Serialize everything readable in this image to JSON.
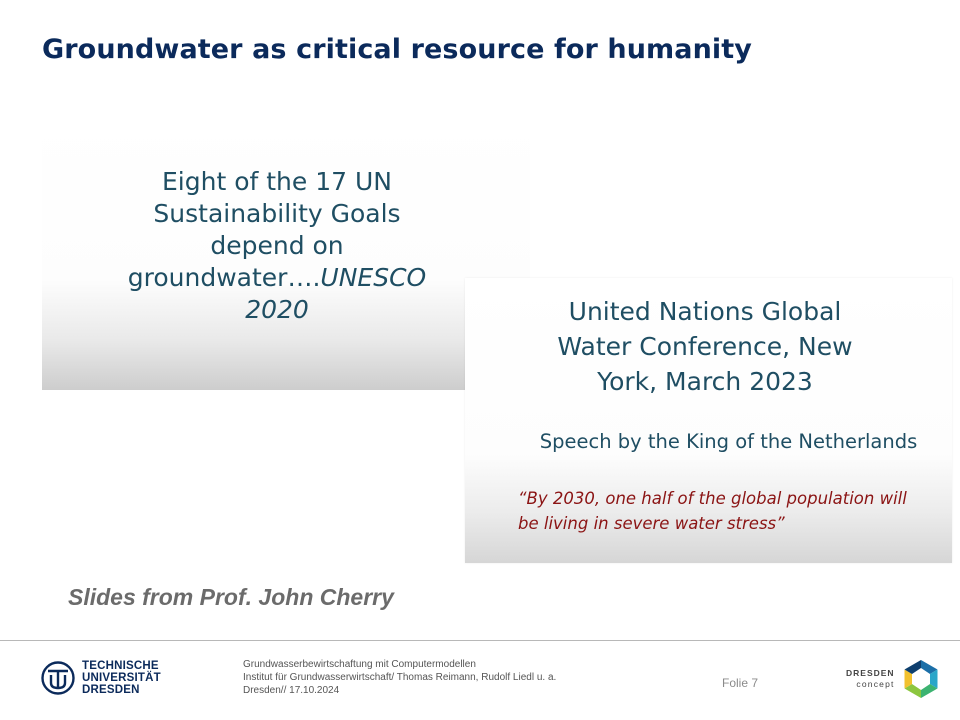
{
  "slide": {
    "title": "Groundwater as critical resource for humanity",
    "box1": {
      "lines": [
        "Eight of the 17 UN",
        "Sustainability Goals",
        "depend on"
      ],
      "last_line_plain": "groundwater….",
      "last_line_italic": "UNESCO",
      "year_italic": "2020"
    },
    "box2": {
      "heading_lines": [
        "United Nations Global",
        "Water Conference, New",
        "York, March 2023"
      ],
      "speech": "Speech by the King of the Netherlands",
      "quote_lines": [
        "“By 2030, one half of the global population will",
        "be living in severe water stress”"
      ]
    },
    "caption": "Slides from Prof. John Cherry"
  },
  "footer": {
    "tu_logo": [
      "TECHNISCHE",
      "UNIVERSITÄT",
      "DRESDEN"
    ],
    "info_lines": [
      "Grundwasserbewirtschaftung mit Computermodellen",
      "Institut für Grundwasserwirtschaft/ Thomas Reimann, Rudolf Liedl u. a.",
      "Dresden// 17.10.2024"
    ],
    "folie": "Folie 7",
    "dresden_concept": [
      "DRESDEN",
      "concept"
    ]
  },
  "colors": {
    "title": "#0b2a5b",
    "box_text": "#1f4e63",
    "quote": "#8b1414",
    "caption": "#6b6b6b"
  },
  "icons": [
    "tu-dresden-logo-icon",
    "dresden-concept-logo-icon"
  ]
}
